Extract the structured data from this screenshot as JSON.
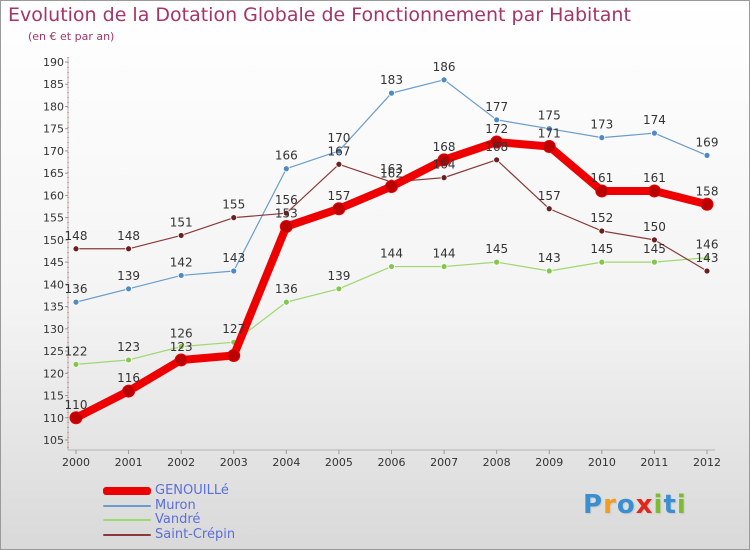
{
  "title": "Evolution de la Dotation Globale de Fonctionnement par Habitant",
  "subtitle": "(en € et par an)",
  "brand": {
    "letters": [
      "P",
      "r",
      "o",
      "x",
      "i",
      "t",
      "i"
    ],
    "colors": [
      "#3a8fd1",
      "#f39c1f",
      "#3a8fd1",
      "#e2261c",
      "#7bbd2f",
      "#3a8fd1",
      "#7bbd2f"
    ]
  },
  "chart_data": {
    "type": "line",
    "x": [
      "2000",
      "2001",
      "2002",
      "2003",
      "2004",
      "2005",
      "2006",
      "2007",
      "2008",
      "2009",
      "2010",
      "2011",
      "2012"
    ],
    "ylim": [
      105,
      190
    ],
    "yticks": [
      105,
      110,
      115,
      120,
      125,
      130,
      135,
      140,
      145,
      150,
      155,
      160,
      165,
      170,
      175,
      180,
      185,
      190
    ],
    "grid": false,
    "legend_position": "bottom-left",
    "series": [
      {
        "name": "GENOUILLé",
        "color": "#ee0000",
        "marker_color": "#bb0000",
        "values": [
          110,
          116,
          123,
          124,
          153,
          157,
          162,
          168,
          172,
          171,
          161,
          161,
          158
        ],
        "labels": [
          "110",
          "116",
          "123",
          "",
          "153",
          "157",
          "162",
          "168",
          "172",
          "171",
          "161",
          "161",
          "158"
        ]
      },
      {
        "name": "Muron",
        "color": "#6a9dcb",
        "marker_color": "#4d8ac6",
        "values": [
          136,
          139,
          142,
          143,
          166,
          170,
          183,
          186,
          177,
          175,
          173,
          174,
          169
        ],
        "labels": [
          "136",
          "139",
          "142",
          "143",
          "166",
          "170",
          "183",
          "186",
          "177",
          "175",
          "173",
          "174",
          "169"
        ]
      },
      {
        "name": "Vandré",
        "color": "#9ed86f",
        "marker_color": "#80c94a",
        "values": [
          122,
          123,
          126,
          127,
          136,
          139,
          144,
          144,
          145,
          143,
          145,
          145,
          146
        ],
        "labels": [
          "122",
          "123",
          "126",
          "127",
          "136",
          "139",
          "144",
          "144",
          "145",
          "143",
          "145",
          "145",
          "146"
        ]
      },
      {
        "name": "Saint-Crépin",
        "color": "#8a3a3a",
        "marker_color": "#6b1f1f",
        "values": [
          148,
          148,
          151,
          155,
          156,
          167,
          163,
          164,
          168,
          157,
          152,
          150,
          143
        ],
        "labels": [
          "148",
          "148",
          "151",
          "155",
          "156",
          "167",
          "163",
          "164",
          "168",
          "157",
          "152",
          "150",
          "143"
        ]
      }
    ]
  }
}
